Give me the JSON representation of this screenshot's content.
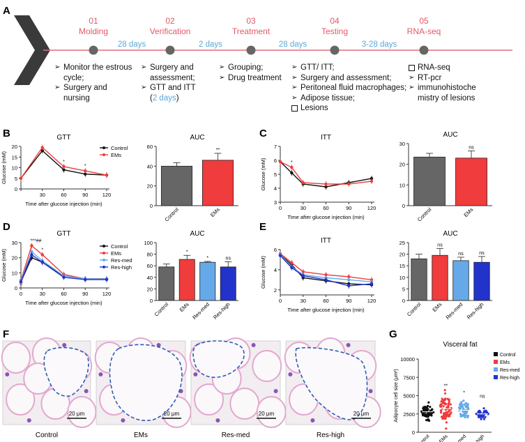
{
  "panel_letters": [
    "A",
    "B",
    "C",
    "D",
    "E",
    "F",
    "G"
  ],
  "timeline": {
    "steps": [
      {
        "num": "01",
        "name": "Molding"
      },
      {
        "num": "02",
        "name": "Verification"
      },
      {
        "num": "03",
        "name": "Treatment"
      },
      {
        "num": "04",
        "name": "Testing"
      },
      {
        "num": "05",
        "name": "RNA-seq"
      }
    ],
    "intervals": [
      "28 days",
      "2 days",
      "28 days",
      "3-28 days"
    ],
    "bullets": [
      [
        "Monitor the estrous",
        "cycle;",
        "Surgery and",
        "nursing"
      ],
      [
        "Surgery and",
        "assessment;",
        "GTT and ITT",
        "(2 days)"
      ],
      [
        "Grouping;",
        "Drug treatment"
      ],
      [
        "GTT/ ITT;",
        "Surgery and assessment;",
        "Peritoneal fluid macrophages;",
        "Adipose tissue;",
        "Lesions"
      ],
      [
        "RNA-seq",
        "RT-pcr",
        "immunohistoche",
        "mistry of lesions"
      ]
    ]
  },
  "colors": {
    "accent": "#e05a66",
    "timeline": "#e06d77",
    "interval": "#5aa7d6",
    "control": "#666666",
    "ems": "#f03c3c",
    "resmed": "#66a9e8",
    "reshigh": "#2233cc"
  },
  "chart_data": [
    {
      "id": "B-GTT",
      "type": "line",
      "title": "GTT",
      "xlabel": "Time after glucose injection (min)",
      "ylabel": "Glucose (mM)",
      "x": [
        0,
        30,
        60,
        90,
        120
      ],
      "ylim": [
        0,
        20
      ],
      "yticks": [
        0,
        5,
        10,
        15,
        20
      ],
      "xticks": [
        "",
        "30",
        "60",
        "90",
        "120"
      ],
      "series": [
        {
          "name": "Control",
          "values": [
            5,
            18,
            9,
            7,
            6.5
          ]
        },
        {
          "name": "EMs",
          "values": [
            5,
            19.5,
            10.5,
            8.5,
            6.5
          ]
        }
      ],
      "annotations": [
        {
          "x": 60,
          "label": "*"
        },
        {
          "x": 90,
          "label": "*"
        }
      ]
    },
    {
      "id": "B-AUC",
      "type": "bar",
      "title": "AUC",
      "categories": [
        "Control",
        "EMs"
      ],
      "values": [
        40,
        46
      ],
      "errors": [
        3.5,
        7
      ],
      "ylim": [
        0,
        60
      ],
      "yticks": [
        0,
        20,
        40,
        60
      ],
      "sig": [
        "",
        "**"
      ]
    },
    {
      "id": "C-ITT",
      "type": "line",
      "title": "ITT",
      "xlabel": "Time after glucose injection (min)",
      "ylabel": "Glucose (mM)",
      "x": [
        0,
        15,
        30,
        60,
        90,
        120
      ],
      "ylim": [
        3,
        7
      ],
      "yticks": [
        3,
        4,
        5,
        6,
        7
      ],
      "xticks": [
        "0",
        "30",
        "60",
        "90",
        "120"
      ],
      "series": [
        {
          "name": "Control",
          "values": [
            5.9,
            5.1,
            4.3,
            4.1,
            4.4,
            4.7
          ]
        },
        {
          "name": "EMs",
          "values": [
            5.9,
            5.5,
            4.4,
            4.3,
            4.3,
            4.5
          ]
        }
      ],
      "annotations": [
        {
          "x": 15,
          "label": "*"
        }
      ]
    },
    {
      "id": "C-AUC",
      "type": "bar",
      "title": "AUC",
      "categories": [
        "Control",
        "EMs"
      ],
      "values": [
        23.5,
        23
      ],
      "errors": [
        1.8,
        3.5
      ],
      "ylim": [
        0,
        30
      ],
      "yticks": [
        0,
        10,
        20,
        30
      ],
      "sig": [
        "",
        "ns"
      ]
    },
    {
      "id": "D-GTT",
      "type": "line",
      "title": "GTT",
      "xlabel": "Time after glucose injection (min)",
      "ylabel": "Glucose (mM)",
      "x": [
        0,
        15,
        30,
        60,
        90,
        120
      ],
      "ylim": [
        0,
        30
      ],
      "yticks": [
        0,
        10,
        20,
        30
      ],
      "xticks": [
        "0",
        "30",
        "60",
        "90",
        "120"
      ],
      "series": [
        {
          "name": "Control",
          "values": [
            4,
            20,
            17,
            8,
            6,
            6
          ]
        },
        {
          "name": "EMs",
          "values": [
            5,
            28,
            22,
            9,
            6,
            6
          ]
        },
        {
          "name": "Res-med",
          "values": [
            4.5,
            24,
            18,
            8,
            6,
            6
          ]
        },
        {
          "name": "Res-high",
          "values": [
            4,
            22,
            17,
            7,
            5.5,
            5.5
          ]
        }
      ],
      "annotations": [
        {
          "x": 15,
          "label": "***##"
        },
        {
          "x": 30,
          "label": "*"
        },
        {
          "x": 0,
          "label": "**"
        }
      ]
    },
    {
      "id": "D-AUC",
      "type": "bar",
      "title": "AUC",
      "categories": [
        "Control",
        "EMs",
        "Res-med",
        "Res-high"
      ],
      "values": [
        58,
        71,
        66,
        58
      ],
      "errors": [
        5,
        7,
        1.5,
        9
      ],
      "ylim": [
        0,
        100
      ],
      "yticks": [
        0,
        20,
        40,
        60,
        80,
        100
      ],
      "sig": [
        "",
        "*",
        "*",
        "ns"
      ]
    },
    {
      "id": "E-ITT",
      "type": "line",
      "title": "ITT",
      "xlabel": "Time after glucose injection (min)",
      "ylabel": "Glucose (mM)",
      "x": [
        0,
        15,
        30,
        60,
        90,
        120
      ],
      "ylim": [
        1.5,
        6
      ],
      "yticks": [
        2,
        4,
        6
      ],
      "xticks": [
        "0",
        "30",
        "60",
        "90",
        "120"
      ],
      "series": [
        {
          "name": "Control",
          "values": [
            5.5,
            4.5,
            3.2,
            2.9,
            2.6,
            2.5
          ]
        },
        {
          "name": "EMs",
          "values": [
            5.6,
            4.7,
            3.8,
            3.5,
            3.3,
            3.0
          ]
        },
        {
          "name": "Res-med",
          "values": [
            5.5,
            4.3,
            3.5,
            3.2,
            3.0,
            2.8
          ]
        },
        {
          "name": "Res-high",
          "values": [
            5.4,
            4.2,
            3.4,
            3.0,
            2.4,
            2.6
          ]
        }
      ],
      "annotations": []
    },
    {
      "id": "E-AUC",
      "type": "bar",
      "title": "AUC",
      "categories": [
        "Control",
        "EMs",
        "Res-med",
        "Res-high"
      ],
      "values": [
        18,
        19.5,
        17.2,
        16.5
      ],
      "errors": [
        2,
        3,
        1.5,
        2.5
      ],
      "ylim": [
        0,
        25
      ],
      "yticks": [
        0,
        5,
        10,
        15,
        20,
        25
      ],
      "sig": [
        "",
        "ns",
        "ns",
        "ns"
      ]
    },
    {
      "id": "G-scatter",
      "type": "scatter",
      "title": "Visceral fat",
      "ylabel": "Adipocyte cell size (μm²)",
      "categories": [
        "Control",
        "EMs",
        "Res-med",
        "Res-high"
      ],
      "centers": [
        2800,
        3200,
        3000,
        2500
      ],
      "spread": [
        1700,
        3400,
        2400,
        1100
      ],
      "counts": [
        80,
        90,
        65,
        45
      ],
      "ylim": [
        0,
        10000
      ],
      "yticks": [
        0,
        2500,
        5000,
        7500,
        10000
      ],
      "sig": [
        "",
        "**",
        "*",
        "ns"
      ]
    }
  ],
  "histology": {
    "labels": [
      "Control",
      "EMs",
      "Res-med",
      "Res-high"
    ],
    "scale": "20 μm"
  }
}
